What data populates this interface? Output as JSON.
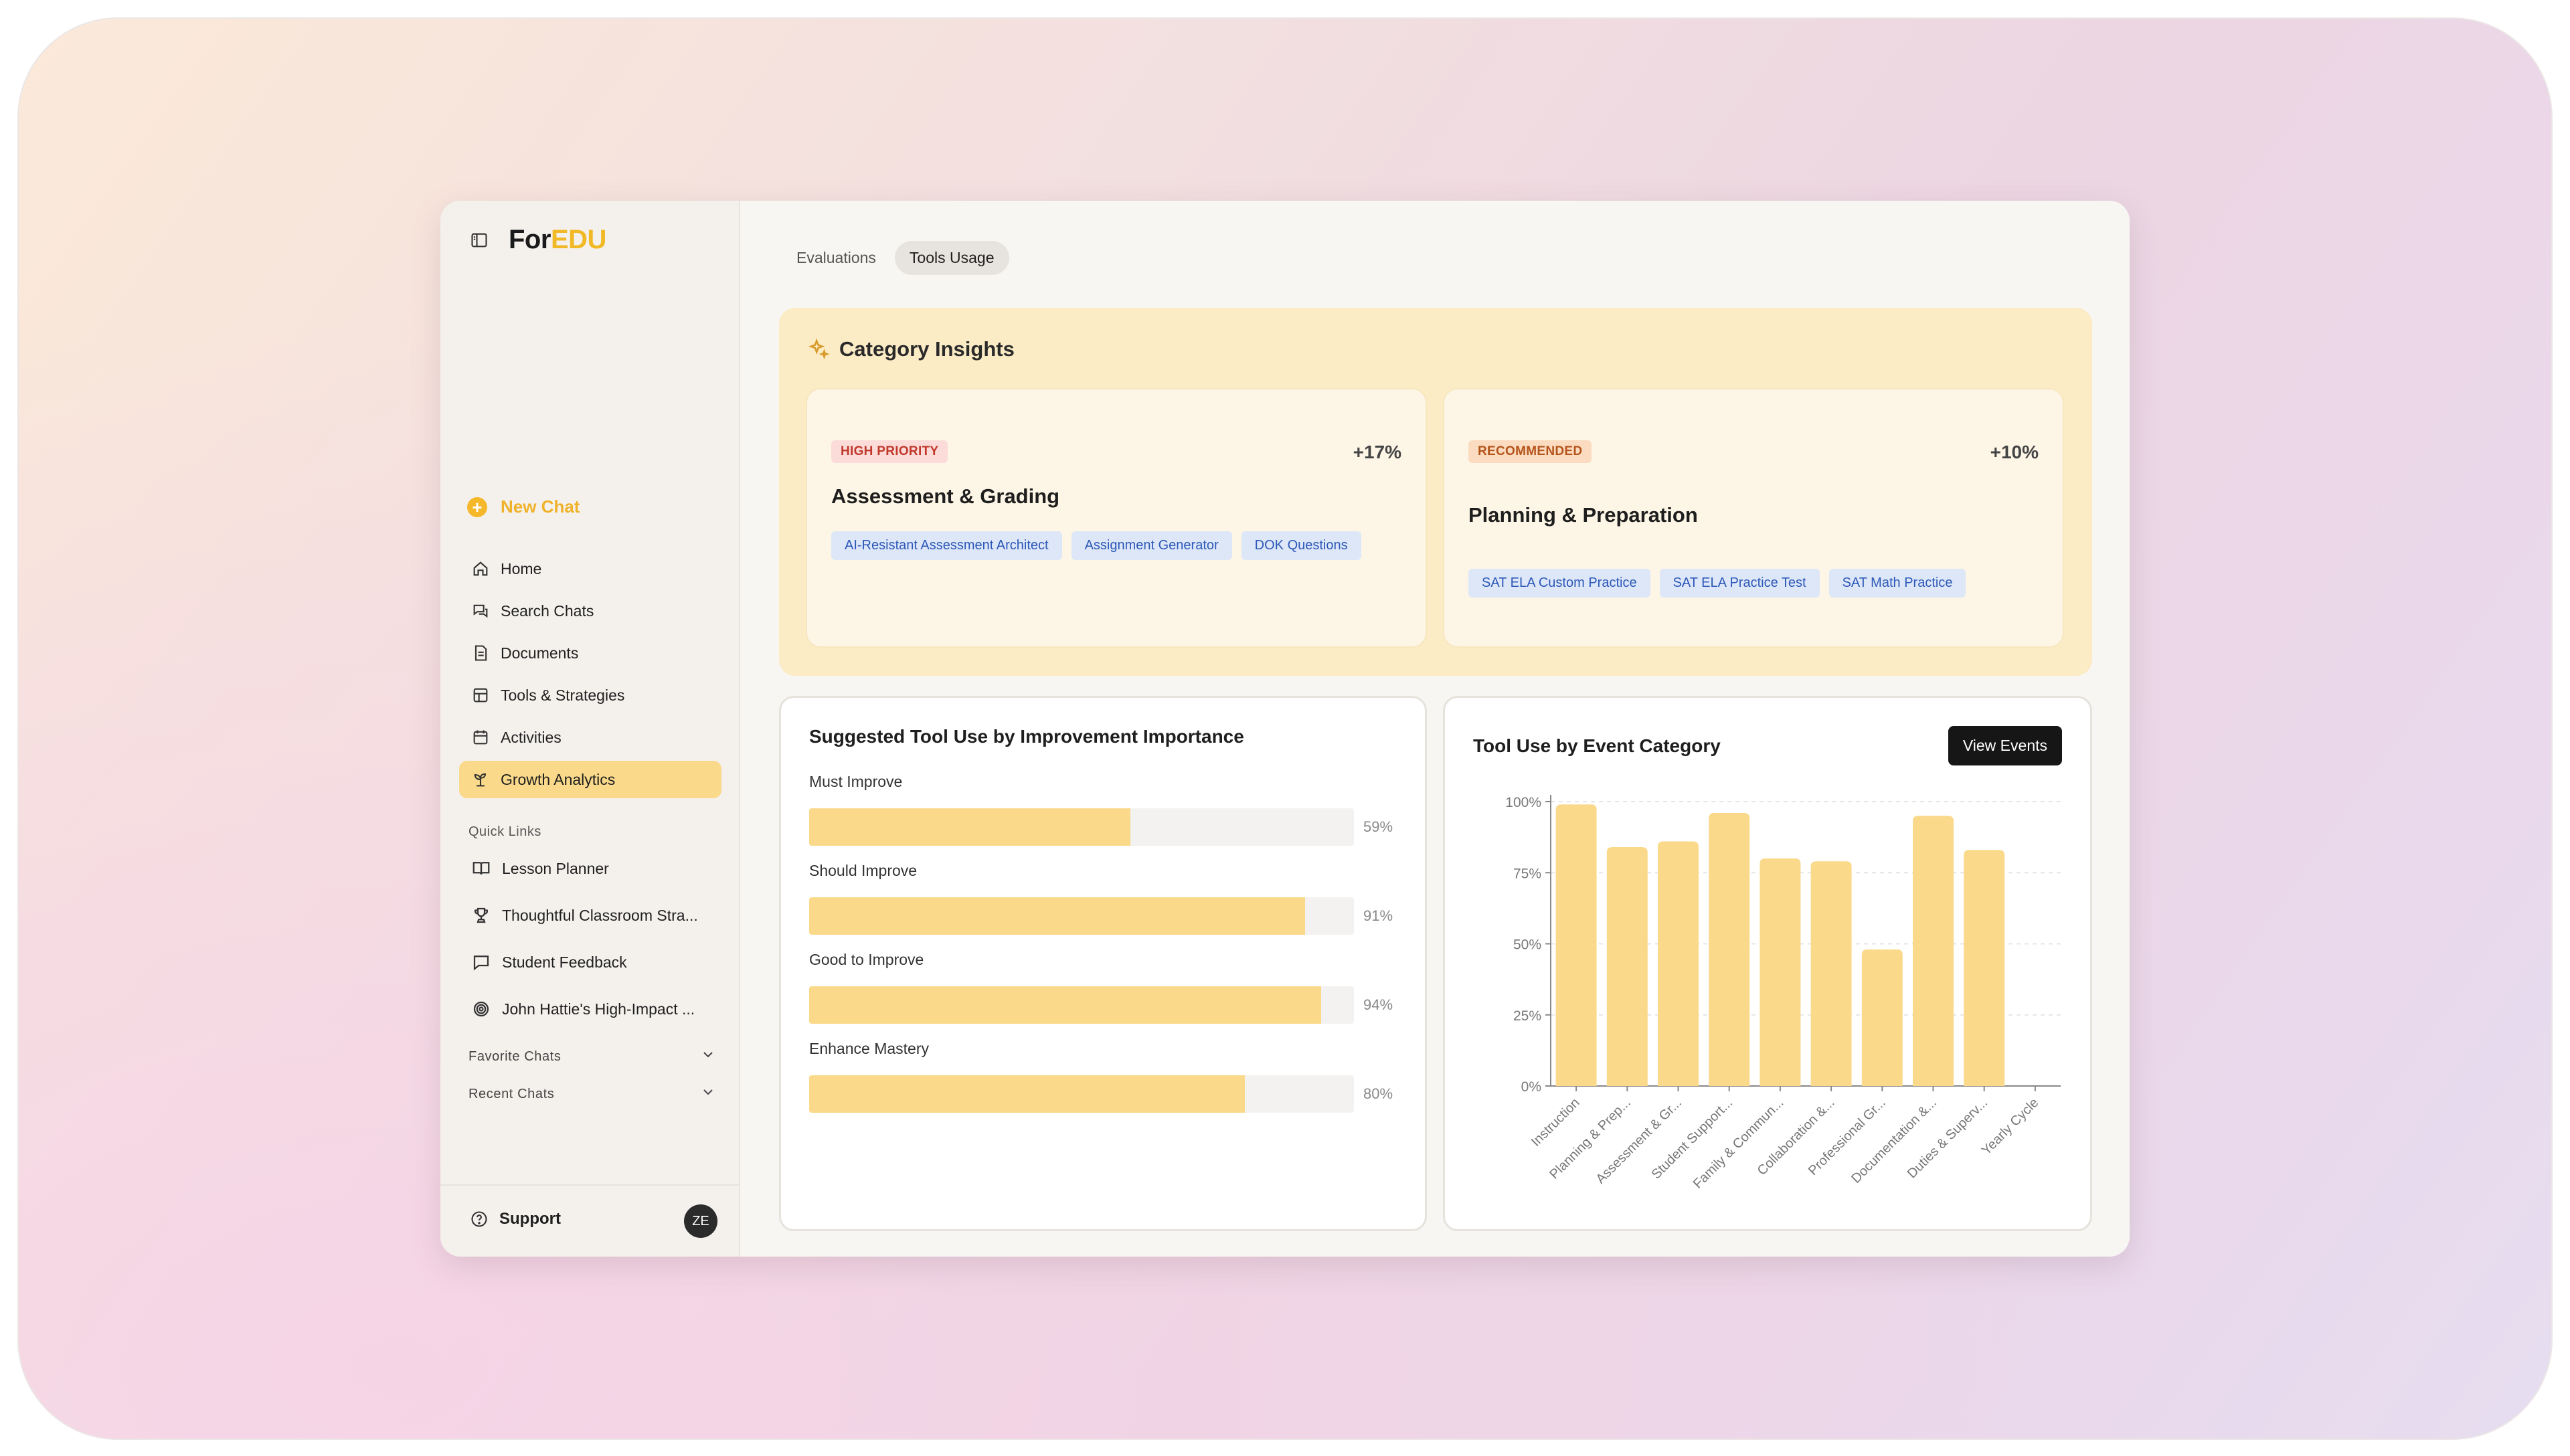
{
  "brand": {
    "prefix": "For",
    "accent": "EDU"
  },
  "sidebar": {
    "new_chat": "New Chat",
    "nav": [
      {
        "label": "Home",
        "icon": "home-icon"
      },
      {
        "label": "Search Chats",
        "icon": "chat-search-icon"
      },
      {
        "label": "Documents",
        "icon": "document-icon"
      },
      {
        "label": "Tools & Strategies",
        "icon": "tools-icon"
      },
      {
        "label": "Activities",
        "icon": "calendar-icon"
      },
      {
        "label": "Growth Analytics",
        "icon": "sprout-icon",
        "active": true
      }
    ],
    "quick_links_title": "Quick Links",
    "quick_links": [
      {
        "label": "Lesson Planner",
        "icon": "book-open-icon"
      },
      {
        "label": "Thoughtful Classroom Stra...",
        "icon": "trophy-icon"
      },
      {
        "label": "Student Feedback",
        "icon": "message-icon"
      },
      {
        "label": "John Hattie's High-Impact ...",
        "icon": "target-icon"
      }
    ],
    "favorite_chats": "Favorite Chats",
    "recent_chats": "Recent Chats",
    "support": "Support",
    "avatar": "ZE"
  },
  "tabs": [
    {
      "label": "Evaluations",
      "active": false
    },
    {
      "label": "Tools Usage",
      "active": true
    }
  ],
  "insights": {
    "title": "Category Insights",
    "cards": [
      {
        "badge": "HIGH PRIORITY",
        "change": "+17%",
        "title": "Assessment & Grading",
        "tags": [
          "AI-Resistant Assessment Architect",
          "Assignment Generator",
          "DOK Questions"
        ]
      },
      {
        "badge": "RECOMMENDED",
        "change": "+10%",
        "title": "Planning & Preparation",
        "tags": [
          "SAT ELA Custom Practice",
          "SAT ELA Practice Test",
          "SAT Math Practice"
        ]
      }
    ]
  },
  "suggested": {
    "title": "Suggested Tool Use by Improvement Importance",
    "bars": [
      {
        "label": "Must Improve",
        "value": 59,
        "pct": "59%"
      },
      {
        "label": "Should Improve",
        "value": 91,
        "pct": "91%"
      },
      {
        "label": "Good to Improve",
        "value": 94,
        "pct": "94%"
      },
      {
        "label": "Enhance Mastery",
        "value": 80,
        "pct": "80%"
      }
    ]
  },
  "event_panel": {
    "title": "Tool Use by Event Category",
    "button": "View Events"
  },
  "chart_data": {
    "type": "bar",
    "title": "Tool Use by Event Category",
    "categories": [
      "Instruction",
      "Planning & Prep...",
      "Assessment & Gr...",
      "Student Support...",
      "Family & Commun...",
      "Collaboration &...",
      "Professional Gr...",
      "Documentation &...",
      "Duties & Superv...",
      "Yearly Cycle"
    ],
    "values": [
      99,
      84,
      86,
      96,
      80,
      79,
      48,
      95,
      83,
      0
    ],
    "ylim": [
      0,
      100
    ],
    "yticks": [
      "0%",
      "25%",
      "50%",
      "75%",
      "100%"
    ],
    "grid": true,
    "bar_color": "#fad98a"
  }
}
